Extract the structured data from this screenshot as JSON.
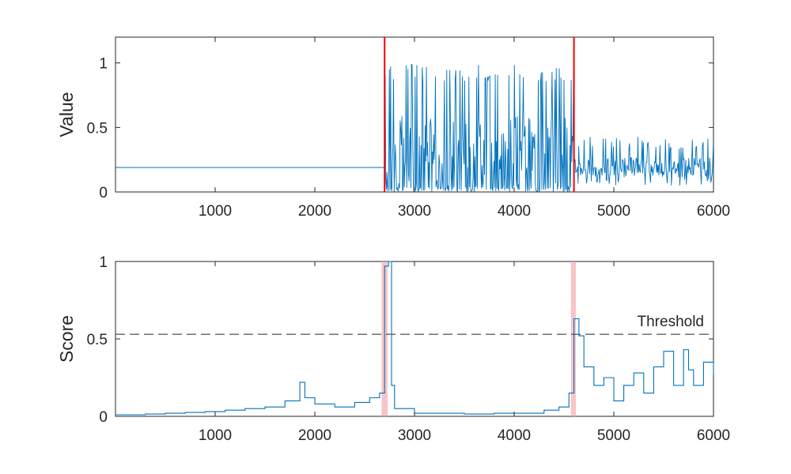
{
  "chart_data": [
    {
      "type": "line",
      "title": "",
      "xlabel": "",
      "ylabel": "Value",
      "xlim": [
        0,
        6000
      ],
      "ylim": [
        0,
        1.2
      ],
      "xticks": [
        "1000",
        "2000",
        "3000",
        "4000",
        "5000",
        "6000"
      ],
      "yticks": [
        "0",
        "0.5",
        "1"
      ],
      "grid": false,
      "series_color": "#0072BD",
      "changepoint_color": "#FF0000",
      "changepoints": [
        2700,
        4600
      ],
      "segments": [
        {
          "x_start": 0,
          "x_end": 2700,
          "level": 0.19,
          "min": 0.19,
          "max": 0.19,
          "description": "constant"
        },
        {
          "x_start": 2700,
          "x_end": 4600,
          "min": 0.0,
          "max": 0.99,
          "typical_low": 0.02,
          "typical_high": 0.85
        },
        {
          "x_start": 4600,
          "x_end": 6000,
          "min": 0.05,
          "max": 0.43,
          "typical_low": 0.12,
          "typical_high": 0.33
        }
      ]
    },
    {
      "type": "line",
      "title": "",
      "xlabel": "",
      "ylabel": "Score",
      "xlim": [
        0,
        6000
      ],
      "ylim": [
        0,
        1
      ],
      "xticks": [
        "1000",
        "2000",
        "3000",
        "4000",
        "5000",
        "6000"
      ],
      "yticks": [
        "0",
        "0.5",
        "1"
      ],
      "grid": false,
      "threshold": 0.53,
      "threshold_label": "Threshold",
      "series_color": "#0072BD",
      "highlight_color": "#F4A6A6",
      "highlights": [
        [
          2670,
          2730
        ],
        [
          4570,
          4620
        ]
      ],
      "step": {
        "x": [
          0,
          300,
          500,
          700,
          900,
          1100,
          1300,
          1500,
          1700,
          1850,
          1900,
          2000,
          2200,
          2400,
          2550,
          2650,
          2700,
          2740,
          2770,
          2800,
          3000,
          3200,
          3500,
          3800,
          4100,
          4300,
          4450,
          4550,
          4600,
          4650,
          4700,
          4800,
          4900,
          5000,
          5100,
          5200,
          5300,
          5400,
          5500,
          5600,
          5700,
          5750,
          5800,
          5900,
          6000
        ],
        "y": [
          0.01,
          0.015,
          0.02,
          0.025,
          0.03,
          0.04,
          0.05,
          0.06,
          0.1,
          0.22,
          0.12,
          0.08,
          0.06,
          0.09,
          0.12,
          0.15,
          0.97,
          1.0,
          0.2,
          0.05,
          0.02,
          0.02,
          0.015,
          0.02,
          0.02,
          0.04,
          0.06,
          0.15,
          0.63,
          0.52,
          0.32,
          0.2,
          0.25,
          0.1,
          0.2,
          0.28,
          0.15,
          0.32,
          0.42,
          0.2,
          0.43,
          0.3,
          0.2,
          0.35,
          0.27
        ]
      }
    }
  ]
}
